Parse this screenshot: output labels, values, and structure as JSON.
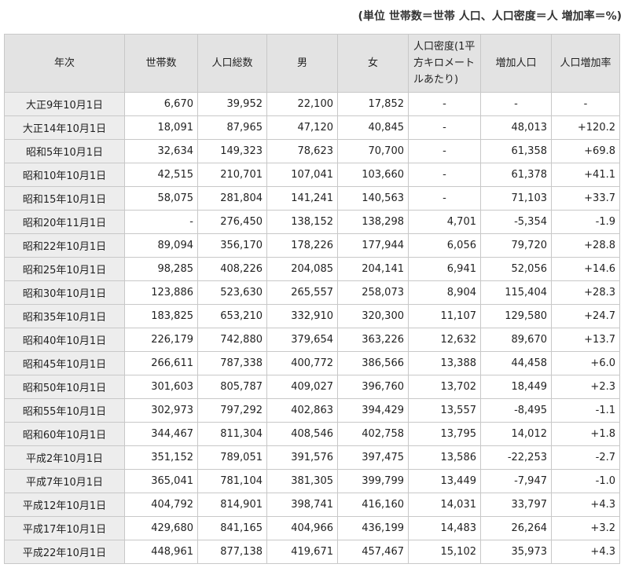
{
  "unit_note": "(単位 世帯数＝世帯 人口、人口密度＝人 増加率＝%)",
  "headers": [
    "年次",
    "世帯数",
    "人口総数",
    "男",
    "女",
    "人口密度(1平方キロメートルあたり)",
    "増加人口",
    "人口増加率"
  ],
  "rows": [
    {
      "year": "大正9年10月1日",
      "households": "6,670",
      "total": "39,952",
      "male": "22,100",
      "female": "17,852",
      "density": "-",
      "increase": "-",
      "rate": "-"
    },
    {
      "year": "大正14年10月1日",
      "households": "18,091",
      "total": "87,965",
      "male": "47,120",
      "female": "40,845",
      "density": "-",
      "increase": "48,013",
      "rate": "+120.2"
    },
    {
      "year": "昭和5年10月1日",
      "households": "32,634",
      "total": "149,323",
      "male": "78,623",
      "female": "70,700",
      "density": "-",
      "increase": "61,358",
      "rate": "+69.8"
    },
    {
      "year": "昭和10年10月1日",
      "households": "42,515",
      "total": "210,701",
      "male": "107,041",
      "female": "103,660",
      "density": "-",
      "increase": "61,378",
      "rate": "+41.1"
    },
    {
      "year": "昭和15年10月1日",
      "households": "58,075",
      "total": "281,804",
      "male": "141,241",
      "female": "140,563",
      "density": "-",
      "increase": "71,103",
      "rate": "+33.7"
    },
    {
      "year": "昭和20年11月1日",
      "households": "-",
      "total": "276,450",
      "male": "138,152",
      "female": "138,298",
      "density": "4,701",
      "increase": "-5,354",
      "rate": "-1.9"
    },
    {
      "year": "昭和22年10月1日",
      "households": "89,094",
      "total": "356,170",
      "male": "178,226",
      "female": "177,944",
      "density": "6,056",
      "increase": "79,720",
      "rate": "+28.8"
    },
    {
      "year": "昭和25年10月1日",
      "households": "98,285",
      "total": "408,226",
      "male": "204,085",
      "female": "204,141",
      "density": "6,941",
      "increase": "52,056",
      "rate": "+14.6"
    },
    {
      "year": "昭和30年10月1日",
      "households": "123,886",
      "total": "523,630",
      "male": "265,557",
      "female": "258,073",
      "density": "8,904",
      "increase": "115,404",
      "rate": "+28.3"
    },
    {
      "year": "昭和35年10月1日",
      "households": "183,825",
      "total": "653,210",
      "male": "332,910",
      "female": "320,300",
      "density": "11,107",
      "increase": "129,580",
      "rate": "+24.7"
    },
    {
      "year": "昭和40年10月1日",
      "households": "226,179",
      "total": "742,880",
      "male": "379,654",
      "female": "363,226",
      "density": "12,632",
      "increase": "89,670",
      "rate": "+13.7"
    },
    {
      "year": "昭和45年10月1日",
      "households": "266,611",
      "total": "787,338",
      "male": "400,772",
      "female": "386,566",
      "density": "13,388",
      "increase": "44,458",
      "rate": "+6.0"
    },
    {
      "year": "昭和50年10月1日",
      "households": "301,603",
      "total": "805,787",
      "male": "409,027",
      "female": "396,760",
      "density": "13,702",
      "increase": "18,449",
      "rate": "+2.3"
    },
    {
      "year": "昭和55年10月1日",
      "households": "302,973",
      "total": "797,292",
      "male": "402,863",
      "female": "394,429",
      "density": "13,557",
      "increase": "-8,495",
      "rate": "-1.1"
    },
    {
      "year": "昭和60年10月1日",
      "households": "344,467",
      "total": "811,304",
      "male": "408,546",
      "female": "402,758",
      "density": "13,795",
      "increase": "14,012",
      "rate": "+1.8"
    },
    {
      "year": "平成2年10月1日",
      "households": "351,152",
      "total": "789,051",
      "male": "391,576",
      "female": "397,475",
      "density": "13,586",
      "increase": "-22,253",
      "rate": "-2.7"
    },
    {
      "year": "平成7年10月1日",
      "households": "365,041",
      "total": "781,104",
      "male": "381,305",
      "female": "399,799",
      "density": "13,449",
      "increase": "-7,947",
      "rate": "-1.0"
    },
    {
      "year": "平成12年10月1日",
      "households": "404,792",
      "total": "814,901",
      "male": "398,741",
      "female": "416,160",
      "density": "14,031",
      "increase": "33,797",
      "rate": "+4.3"
    },
    {
      "year": "平成17年10月1日",
      "households": "429,680",
      "total": "841,165",
      "male": "404,966",
      "female": "436,199",
      "density": "14,483",
      "increase": "26,264",
      "rate": "+3.2"
    },
    {
      "year": "平成22年10月1日",
      "households": "448,961",
      "total": "877,138",
      "male": "419,671",
      "female": "457,467",
      "density": "15,102",
      "increase": "35,973",
      "rate": "+4.3"
    }
  ]
}
